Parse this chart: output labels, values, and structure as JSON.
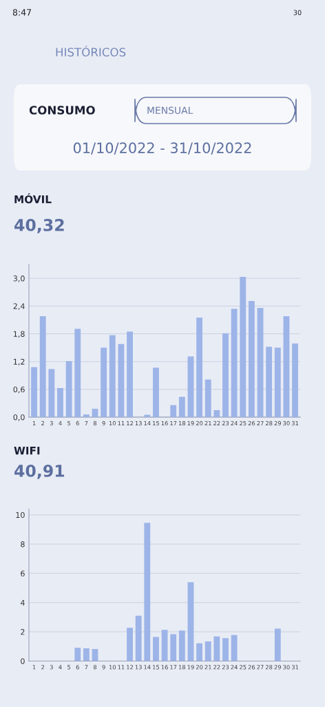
{
  "chart_data": [
    {
      "type": "bar",
      "title": "MÓVIL",
      "subtitle": "40,32",
      "annotations": [
        "8:47",
        "30",
        "HISTÓRICOS",
        "CONSUMO",
        "MENSUAL",
        "01/10/2022 - 31/10/2022"
      ],
      "categories": [
        "1",
        "2",
        "3",
        "4",
        "5",
        "6",
        "7",
        "8",
        "9",
        "10",
        "11",
        "12",
        "13",
        "14",
        "15",
        "16",
        "17",
        "18",
        "19",
        "20",
        "21",
        "22",
        "23",
        "24",
        "25",
        "26",
        "27",
        "28",
        "29",
        "30",
        "31"
      ],
      "values": [
        1.08,
        2.18,
        1.04,
        0.63,
        1.21,
        1.91,
        0.06,
        0.18,
        1.5,
        1.77,
        1.58,
        1.85,
        0,
        0.05,
        1.07,
        0,
        0.26,
        0.44,
        1.31,
        2.15,
        0.81,
        0.15,
        1.81,
        2.34,
        3.03,
        2.51,
        2.36,
        1.52,
        1.5,
        2.18,
        1.59
      ],
      "color": "#9db4e8",
      "ylim": [
        0,
        3.3
      ],
      "yticks": [
        {
          "value": 0,
          "label": "0,0"
        },
        {
          "value": 0.6,
          "label": "0,6"
        },
        {
          "value": 1.2,
          "label": "1,2"
        },
        {
          "value": 1.8,
          "label": "1,8"
        },
        {
          "value": 2.4,
          "label": "2,4"
        },
        {
          "value": 3.0,
          "label": "3,0"
        }
      ],
      "grid": "y"
    },
    {
      "type": "bar",
      "title": "WIFI",
      "subtitle": "40,91",
      "categories": [
        "1",
        "2",
        "3",
        "4",
        "5",
        "6",
        "7",
        "8",
        "9",
        "10",
        "11",
        "12",
        "13",
        "14",
        "15",
        "16",
        "17",
        "18",
        "19",
        "20",
        "21",
        "22",
        "23",
        "24",
        "25",
        "26",
        "27",
        "28",
        "29",
        "30",
        "31"
      ],
      "values": [
        0,
        0,
        0,
        0,
        0,
        0.91,
        0.87,
        0.82,
        0,
        0,
        0,
        2.28,
        3.1,
        9.46,
        1.65,
        2.14,
        1.84,
        2.09,
        5.39,
        1.21,
        1.34,
        1.69,
        1.57,
        1.78,
        0,
        0,
        0,
        0,
        2.22,
        0,
        0
      ],
      "color": "#9db4e8",
      "ylim": [
        0,
        10.4
      ],
      "yticks": [
        0,
        2,
        4,
        6,
        8,
        10
      ],
      "grid": "y"
    }
  ]
}
